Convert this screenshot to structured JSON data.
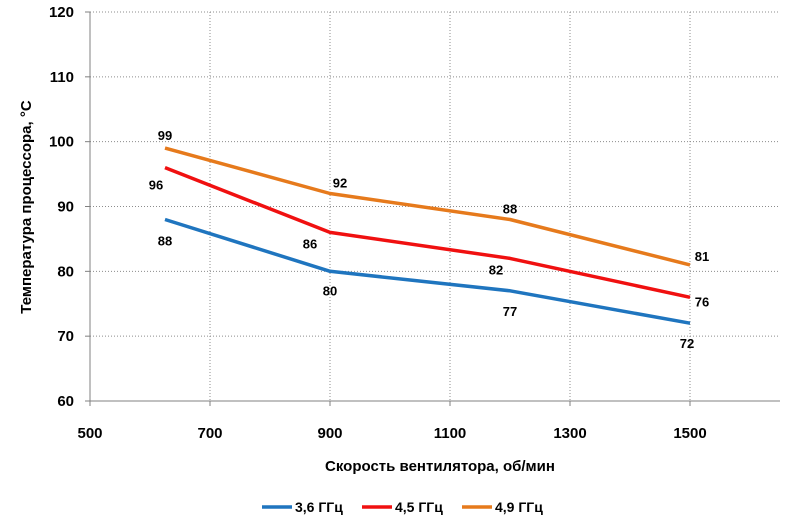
{
  "chart_data": {
    "type": "line",
    "title": "",
    "xlabel": "Скорость вентилятора, об/мин",
    "ylabel": "Температура процессора, °C",
    "xlim": [
      500,
      1650
    ],
    "ylim": [
      60,
      120
    ],
    "x_ticks": [
      "500",
      "700",
      "900",
      "1100",
      "1300",
      "1500"
    ],
    "y_ticks": [
      "60",
      "70",
      "80",
      "90",
      "100",
      "110",
      "120"
    ],
    "grid": true,
    "legend_position": "bottom",
    "series": [
      {
        "name": "3,6 ГГц",
        "color": "#1f75bf",
        "x": [
          625,
          900,
          1200,
          1500
        ],
        "y": [
          88,
          80,
          77,
          72
        ],
        "labels": [
          "88",
          "80",
          "77",
          "72"
        ]
      },
      {
        "name": "4,5 ГГц",
        "color": "#f01010",
        "x": [
          625,
          900,
          1200,
          1500
        ],
        "y": [
          96,
          86,
          82,
          76
        ],
        "labels": [
          "96",
          "86",
          "82",
          "76"
        ]
      },
      {
        "name": "4,9 ГГц",
        "color": "#e67a1c",
        "x": [
          625,
          900,
          1200,
          1500
        ],
        "y": [
          99,
          92,
          88,
          81
        ],
        "labels": [
          "99",
          "92",
          "88",
          "81"
        ]
      }
    ]
  }
}
